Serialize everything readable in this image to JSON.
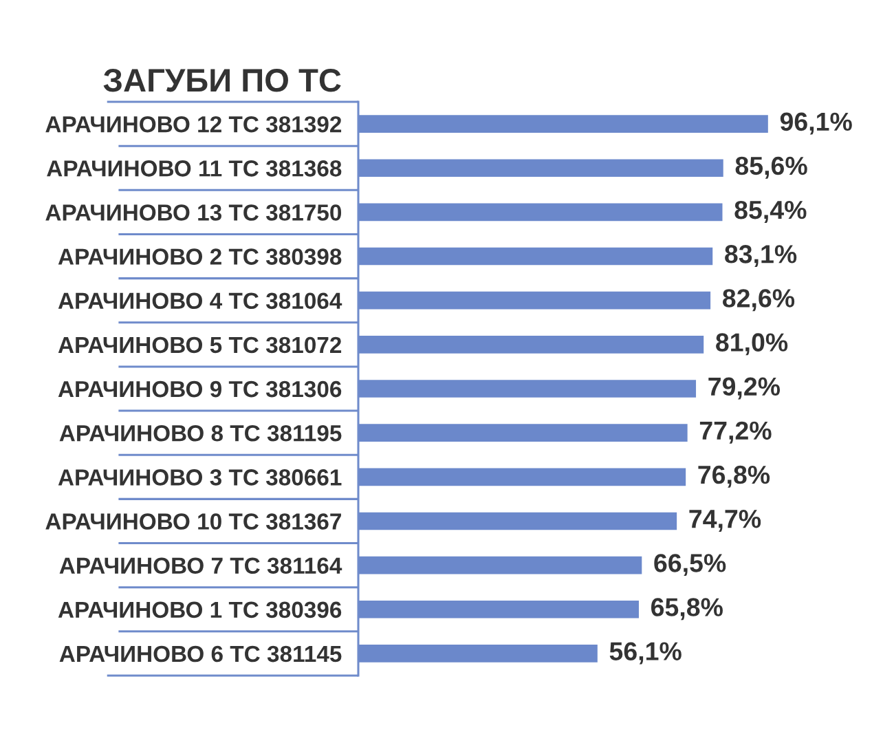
{
  "chart_data": {
    "type": "bar",
    "orientation": "horizontal",
    "title": "ЗАГУБИ ПО ТС",
    "categories": [
      "АРАЧИНОВО 12 ТС 381392",
      "АРАЧИНОВО 11 ТС 381368",
      "АРАЧИНОВО 13 ТС 381750",
      "АРАЧИНОВО 2 ТС 380398",
      "АРАЧИНОВО 4 ТС 381064",
      "АРАЧИНОВО 5 ТС 381072",
      "АРАЧИНОВО 9 ТС 381306",
      "АРАЧИНОВО 8 ТС 381195",
      "АРАЧИНОВО 3 ТС 380661",
      "АРАЧИНОВО 10 ТС 381367",
      "АРАЧИНОВО 7 ТС 381164",
      "АРАЧИНОВО 1 ТС 380396",
      "АРАЧИНОВО 6 ТС 381145"
    ],
    "values": [
      96.1,
      85.6,
      85.4,
      83.1,
      82.6,
      81.0,
      79.2,
      77.2,
      76.8,
      74.7,
      66.5,
      65.8,
      56.1
    ],
    "value_labels": [
      "96,1%",
      "85,6%",
      "85,4%",
      "83,1%",
      "82,6%",
      "81,0%",
      "79,2%",
      "77,2%",
      "76,8%",
      "74,7%",
      "66,5%",
      "65,8%",
      "56,1%"
    ],
    "color": "#6b88cb"
  }
}
